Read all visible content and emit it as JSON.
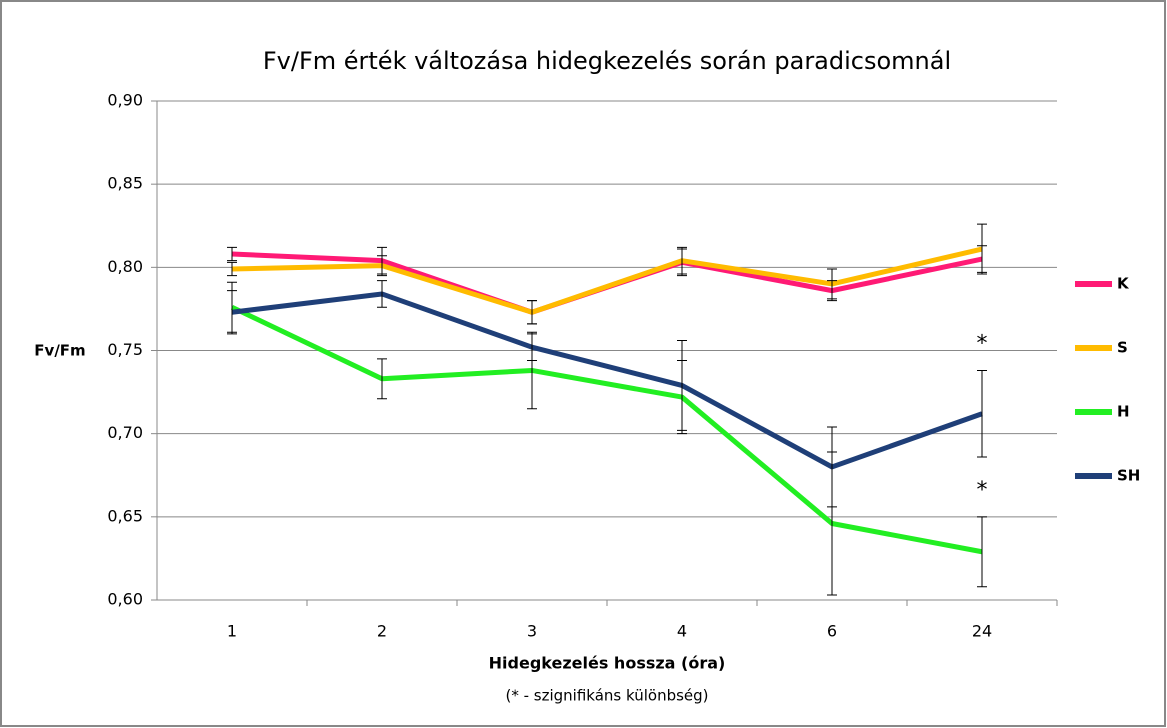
{
  "chart_data": {
    "type": "line",
    "title": "Fv/Fm érték változása hidegkezelés során paradicsomnál",
    "x_label": "Hidegkezelés hossza (óra)",
    "y_label": "Fv/Fm",
    "note": "(* - szignifikáns különbség)",
    "categories": [
      "1",
      "2",
      "3",
      "4",
      "6",
      "24"
    ],
    "series": [
      {
        "name": "K",
        "color": "#ff1a75",
        "values": [
          0.808,
          0.804,
          0.773,
          0.803,
          0.786,
          0.805
        ],
        "errors": [
          0.004,
          0.008,
          0.007,
          0.008,
          0.006,
          0.008
        ]
      },
      {
        "name": "S",
        "color": "#ffbb00",
        "values": [
          0.799,
          0.801,
          0.773,
          0.804,
          0.79,
          0.811
        ],
        "errors": [
          0.004,
          0.006,
          0.007,
          0.008,
          0.009,
          0.015
        ]
      },
      {
        "name": "H",
        "color": "#22ee22",
        "values": [
          0.776,
          0.733,
          0.738,
          0.722,
          0.646,
          0.629
        ],
        "errors": [
          0.015,
          0.012,
          0.023,
          0.022,
          0.043,
          0.021
        ]
      },
      {
        "name": "SH",
        "color": "#1f3f78",
        "values": [
          0.773,
          0.784,
          0.752,
          0.729,
          0.68,
          0.712
        ],
        "errors": [
          0.013,
          0.008,
          0.008,
          0.027,
          0.024,
          0.026
        ]
      }
    ],
    "annotations": [
      "*",
      "*"
    ],
    "ylim": [
      0.6,
      0.9
    ],
    "yticks": [
      {
        "value": 0.6,
        "label": "0,60"
      },
      {
        "value": 0.65,
        "label": "0,65"
      },
      {
        "value": 0.7,
        "label": "0,70"
      },
      {
        "value": 0.75,
        "label": "0,75"
      },
      {
        "value": 0.8,
        "label": "0,80"
      },
      {
        "value": 0.85,
        "label": "0,85"
      },
      {
        "value": 0.9,
        "label": "0,90"
      }
    ],
    "grid": true,
    "legend": "right"
  }
}
